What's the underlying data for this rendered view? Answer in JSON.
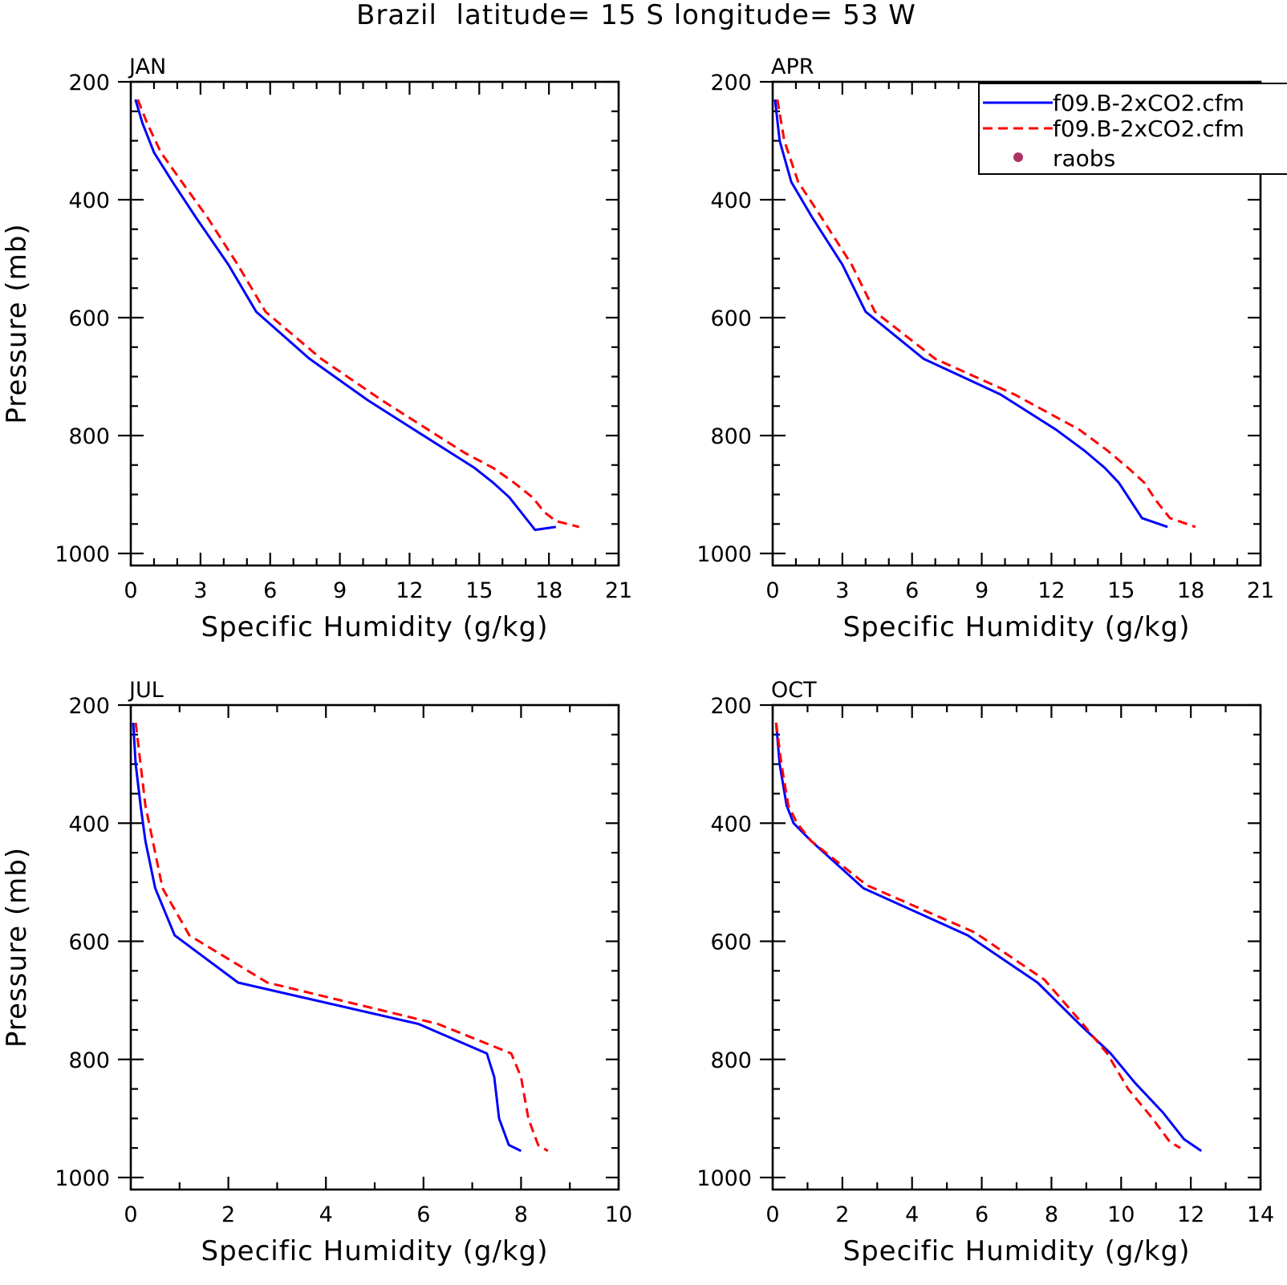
{
  "figure": {
    "title": "Brazil  latitude= 15 S longitude= 53 W"
  },
  "legend": {
    "entries": [
      {
        "label": "f09.B-2xCO2.cfm",
        "color": "#0000ff",
        "style": "solid"
      },
      {
        "label": "f09.B-2xCO2.cfm",
        "color": "#ff0000",
        "style": "dashed"
      },
      {
        "label": "raobs",
        "color": "#aa3366",
        "style": "dot"
      }
    ]
  },
  "colors": {
    "series_solid": "#0000ff",
    "series_dashed": "#ff0000",
    "raobs": "#aa3366"
  },
  "chart_data": [
    {
      "type": "line",
      "title": "JAN",
      "xlabel": "Specific Humidity (g/kg)",
      "ylabel": "Pressure (mb)",
      "xlim": [
        0,
        21
      ],
      "ylim": [
        1000,
        200
      ],
      "xticks": [
        "0",
        "3",
        "6",
        "9",
        "12",
        "15",
        "18",
        "21"
      ],
      "yticks": [
        "200",
        "400",
        "600",
        "800",
        "1000"
      ],
      "series": [
        {
          "x": [
            0.2,
            0.5,
            1.0,
            1.8,
            2.8,
            4.2,
            5.4,
            7.7,
            10.2,
            12.2,
            13.8,
            14.8,
            15.6,
            16.3,
            16.8,
            17.4,
            18.3
          ],
          "y": [
            230,
            270,
            320,
            370,
            430,
            510,
            590,
            670,
            740,
            790,
            830,
            855,
            880,
            905,
            930,
            960,
            955
          ]
        },
        {
          "x": [
            0.3,
            0.7,
            1.3,
            2.2,
            3.3,
            4.6,
            5.8,
            8.2,
            10.8,
            12.8,
            14.4,
            15.6,
            16.5,
            17.3,
            17.8,
            18.3,
            19.3
          ],
          "y": [
            230,
            270,
            320,
            370,
            430,
            510,
            590,
            670,
            740,
            790,
            830,
            855,
            880,
            905,
            930,
            945,
            955
          ]
        },
        {
          "x": [],
          "y": []
        }
      ]
    },
    {
      "type": "line",
      "title": "APR",
      "xlabel": "Specific Humidity (g/kg)",
      "ylabel": "",
      "xlim": [
        0,
        21
      ],
      "ylim": [
        1000,
        200
      ],
      "xticks": [
        "0",
        "3",
        "6",
        "9",
        "12",
        "15",
        "18",
        "21"
      ],
      "yticks": [
        "200",
        "400",
        "600",
        "800",
        "1000"
      ],
      "series": [
        {
          "x": [
            0.1,
            0.3,
            0.8,
            1.7,
            3.0,
            4.0,
            6.5,
            9.8,
            12.2,
            13.4,
            14.3,
            14.9,
            15.4,
            15.9,
            17.0
          ],
          "y": [
            230,
            300,
            370,
            430,
            510,
            590,
            670,
            730,
            790,
            825,
            855,
            880,
            910,
            940,
            955
          ]
        },
        {
          "x": [
            0.2,
            0.5,
            1.1,
            2.1,
            3.4,
            4.4,
            7.0,
            10.4,
            13.2,
            14.4,
            15.3,
            16.0,
            16.5,
            17.1,
            18.2
          ],
          "y": [
            230,
            300,
            370,
            430,
            510,
            590,
            670,
            730,
            790,
            825,
            855,
            880,
            910,
            940,
            955
          ]
        },
        {
          "x": [],
          "y": []
        }
      ]
    },
    {
      "type": "line",
      "title": "JUL",
      "xlabel": "Specific Humidity (g/kg)",
      "ylabel": "Pressure (mb)",
      "xlim": [
        0,
        10
      ],
      "ylim": [
        1000,
        200
      ],
      "xticks": [
        "0",
        "2",
        "4",
        "6",
        "8",
        "10"
      ],
      "yticks": [
        "200",
        "400",
        "600",
        "800",
        "1000"
      ],
      "series": [
        {
          "x": [
            0.05,
            0.1,
            0.2,
            0.3,
            0.5,
            0.9,
            2.2,
            5.9,
            7.3,
            7.45,
            7.55,
            7.75,
            8.0
          ],
          "y": [
            230,
            300,
            370,
            430,
            510,
            590,
            670,
            740,
            790,
            830,
            900,
            945,
            955
          ]
        },
        {
          "x": [
            0.1,
            0.2,
            0.3,
            0.45,
            0.65,
            1.2,
            2.8,
            6.3,
            7.8,
            8.0,
            8.15,
            8.35,
            8.55
          ],
          "y": [
            230,
            300,
            370,
            430,
            510,
            590,
            670,
            740,
            790,
            830,
            900,
            945,
            955
          ]
        },
        {
          "x": [],
          "y": []
        }
      ]
    },
    {
      "type": "line",
      "title": "OCT",
      "xlabel": "Specific Humidity (g/kg)",
      "ylabel": "",
      "xlim": [
        0,
        14
      ],
      "ylim": [
        1000,
        200
      ],
      "xticks": [
        "0",
        "2",
        "4",
        "6",
        "8",
        "10",
        "12",
        "14"
      ],
      "yticks": [
        "200",
        "400",
        "600",
        "800",
        "1000"
      ],
      "series": [
        {
          "x": [
            0.1,
            0.2,
            0.4,
            0.6,
            1.1,
            2.6,
            5.6,
            7.6,
            8.8,
            9.7,
            10.4,
            11.2,
            11.8,
            12.3
          ],
          "y": [
            230,
            300,
            370,
            400,
            430,
            510,
            590,
            670,
            740,
            790,
            840,
            890,
            935,
            955
          ]
        },
        {
          "x": [
            0.1,
            0.25,
            0.45,
            0.7,
            1.1,
            2.7,
            5.8,
            7.8,
            8.9,
            9.6,
            10.2,
            10.9,
            11.4,
            11.7
          ],
          "y": [
            230,
            300,
            370,
            400,
            430,
            505,
            585,
            665,
            740,
            790,
            850,
            900,
            940,
            950
          ]
        },
        {
          "x": [],
          "y": []
        }
      ]
    }
  ]
}
